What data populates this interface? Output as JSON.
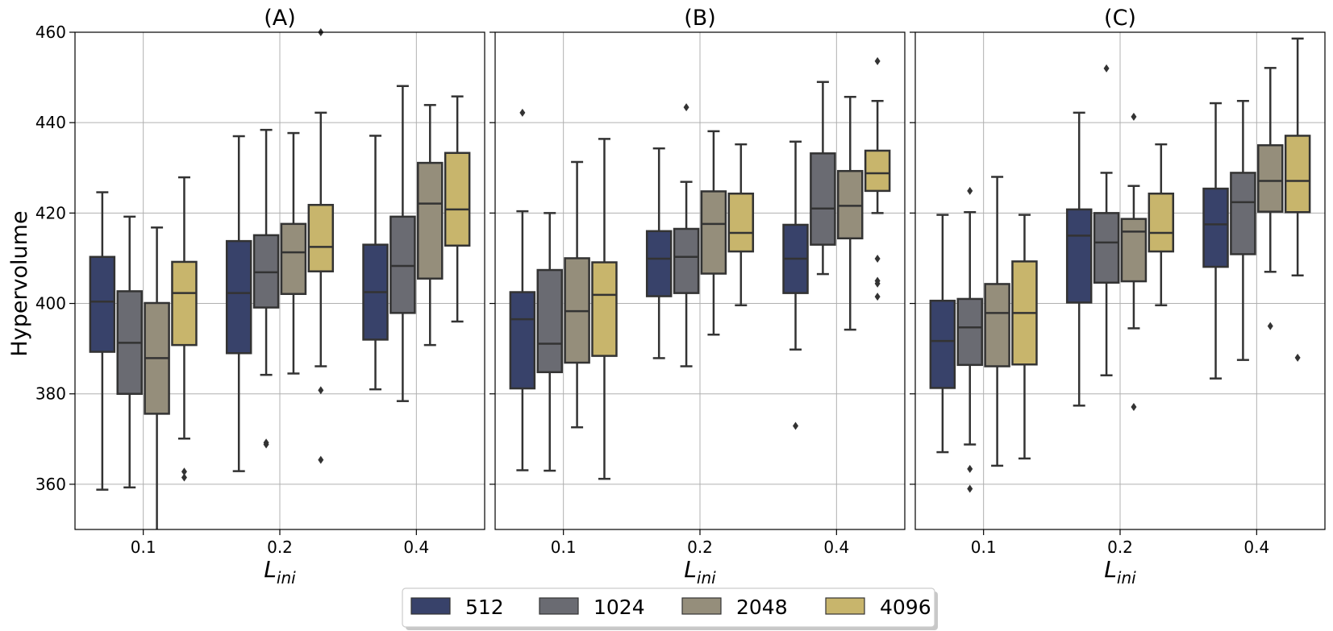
{
  "chart_data": {
    "type": "box",
    "ylabel": "Hypervolume",
    "ylim": [
      350,
      460
    ],
    "yticks": [
      360,
      380,
      400,
      420,
      440,
      460
    ],
    "categories": [
      "0.1",
      "0.2",
      "0.4"
    ],
    "xlabel_main": "L",
    "xlabel_sub": "ini",
    "grid": true,
    "legend": {
      "placement": "bottom-center",
      "entries": [
        {
          "label": "512",
          "color": "#38426a"
        },
        {
          "label": "1024",
          "color": "#6a6b72"
        },
        {
          "label": "2048",
          "color": "#958e7b"
        },
        {
          "label": "4096",
          "color": "#c8b56c"
        }
      ]
    },
    "panels": [
      {
        "title": "(A)",
        "groups": [
          [
            {
              "whislo": 358.8,
              "q1": 389.3,
              "med": 400.4,
              "q3": 410.3,
              "whishi": 424.6,
              "fliers": []
            },
            {
              "whislo": 359.3,
              "q1": 380.0,
              "med": 391.3,
              "q3": 402.7,
              "whishi": 419.2,
              "fliers": []
            },
            {
              "whislo": 350,
              "q1": 375.6,
              "med": 387.9,
              "q3": 400.1,
              "whishi": 416.8,
              "fliers": []
            },
            {
              "whislo": 370.1,
              "q1": 390.8,
              "med": 402.3,
              "q3": 409.2,
              "whishi": 427.9,
              "fliers": [
                361.5,
                362.8
              ]
            }
          ],
          [
            {
              "whislo": 362.9,
              "q1": 389.0,
              "med": 402.3,
              "q3": 413.8,
              "whishi": 437.0,
              "fliers": []
            },
            {
              "whislo": 384.2,
              "q1": 399.1,
              "med": 406.9,
              "q3": 415.1,
              "whishi": 438.4,
              "fliers": [
                368.8,
                369.2
              ]
            },
            {
              "whislo": 384.5,
              "q1": 402.1,
              "med": 411.3,
              "q3": 417.6,
              "whishi": 437.7,
              "fliers": []
            },
            {
              "whislo": 386.1,
              "q1": 407.1,
              "med": 412.5,
              "q3": 421.8,
              "whishi": 442.2,
              "fliers": [
                365.4,
                380.8,
                460.0
              ]
            }
          ],
          [
            {
              "whislo": 381.0,
              "q1": 392.0,
              "med": 402.5,
              "q3": 413.0,
              "whishi": 437.1,
              "fliers": []
            },
            {
              "whislo": 378.4,
              "q1": 397.9,
              "med": 408.3,
              "q3": 419.2,
              "whishi": 448.1,
              "fliers": []
            },
            {
              "whislo": 390.8,
              "q1": 405.5,
              "med": 422.1,
              "q3": 431.1,
              "whishi": 443.9,
              "fliers": []
            },
            {
              "whislo": 396.0,
              "q1": 412.8,
              "med": 420.8,
              "q3": 433.3,
              "whishi": 445.8,
              "fliers": []
            }
          ]
        ]
      },
      {
        "title": "(B)",
        "groups": [
          [
            {
              "whislo": 363.1,
              "q1": 381.2,
              "med": 396.5,
              "q3": 402.5,
              "whishi": 420.4,
              "fliers": [
                442.2
              ]
            },
            {
              "whislo": 363.0,
              "q1": 384.8,
              "med": 391.1,
              "q3": 407.4,
              "whishi": 420.0,
              "fliers": []
            },
            {
              "whislo": 372.6,
              "q1": 386.9,
              "med": 398.3,
              "q3": 410.0,
              "whishi": 431.3,
              "fliers": []
            },
            {
              "whislo": 361.2,
              "q1": 388.4,
              "med": 401.9,
              "q3": 409.1,
              "whishi": 436.4,
              "fliers": []
            }
          ],
          [
            {
              "whislo": 387.9,
              "q1": 401.6,
              "med": 409.9,
              "q3": 416.0,
              "whishi": 434.3,
              "fliers": []
            },
            {
              "whislo": 386.1,
              "q1": 402.3,
              "med": 410.3,
              "q3": 416.5,
              "whishi": 426.9,
              "fliers": [
                443.4
              ]
            },
            {
              "whislo": 393.1,
              "q1": 406.6,
              "med": 417.6,
              "q3": 424.8,
              "whishi": 438.1,
              "fliers": []
            },
            {
              "whislo": 399.6,
              "q1": 411.5,
              "med": 415.6,
              "q3": 424.3,
              "whishi": 435.2,
              "fliers": []
            }
          ],
          [
            {
              "whislo": 389.8,
              "q1": 402.3,
              "med": 409.9,
              "q3": 417.4,
              "whishi": 435.8,
              "fliers": [
                372.9
              ]
            },
            {
              "whislo": 406.5,
              "q1": 413.0,
              "med": 421.0,
              "q3": 433.2,
              "whishi": 449.0,
              "fliers": []
            },
            {
              "whislo": 394.2,
              "q1": 414.4,
              "med": 421.6,
              "q3": 429.3,
              "whishi": 445.7,
              "fliers": []
            },
            {
              "whislo": 420.0,
              "q1": 424.9,
              "med": 428.8,
              "q3": 433.8,
              "whishi": 444.8,
              "fliers": [
                453.6,
                409.9,
                405.0,
                404.4,
                401.5
              ]
            }
          ]
        ]
      },
      {
        "title": "(C)",
        "groups": [
          [
            {
              "whislo": 367.1,
              "q1": 381.3,
              "med": 391.7,
              "q3": 400.6,
              "whishi": 419.6,
              "fliers": []
            },
            {
              "whislo": 368.8,
              "q1": 386.4,
              "med": 394.7,
              "q3": 401.0,
              "whishi": 420.2,
              "fliers": [
                424.9,
                363.4,
                359.0
              ]
            },
            {
              "whislo": 364.1,
              "q1": 386.1,
              "med": 397.9,
              "q3": 404.3,
              "whishi": 428.0,
              "fliers": []
            },
            {
              "whislo": 365.7,
              "q1": 386.5,
              "med": 397.9,
              "q3": 409.3,
              "whishi": 419.6,
              "fliers": []
            }
          ],
          [
            {
              "whislo": 377.4,
              "q1": 400.2,
              "med": 415.0,
              "q3": 420.8,
              "whishi": 442.2,
              "fliers": []
            },
            {
              "whislo": 384.1,
              "q1": 404.6,
              "med": 413.5,
              "q3": 420.0,
              "whishi": 428.9,
              "fliers": [
                452.0
              ]
            },
            {
              "whislo": 394.5,
              "q1": 404.9,
              "med": 415.9,
              "q3": 418.7,
              "whishi": 426.0,
              "fliers": [
                441.3,
                377.1
              ]
            },
            {
              "whislo": 399.6,
              "q1": 411.5,
              "med": 415.6,
              "q3": 424.3,
              "whishi": 435.2,
              "fliers": []
            }
          ],
          [
            {
              "whislo": 383.4,
              "q1": 408.1,
              "med": 417.5,
              "q3": 425.4,
              "whishi": 444.3,
              "fliers": []
            },
            {
              "whislo": 387.5,
              "q1": 410.9,
              "med": 422.4,
              "q3": 428.9,
              "whishi": 444.8,
              "fliers": []
            },
            {
              "whislo": 407.0,
              "q1": 420.3,
              "med": 427.1,
              "q3": 435.0,
              "whishi": 452.1,
              "fliers": [
                395.0
              ]
            },
            {
              "whislo": 406.2,
              "q1": 420.2,
              "med": 427.1,
              "q3": 437.1,
              "whishi": 458.6,
              "fliers": [
                388.0
              ]
            }
          ]
        ]
      }
    ]
  }
}
